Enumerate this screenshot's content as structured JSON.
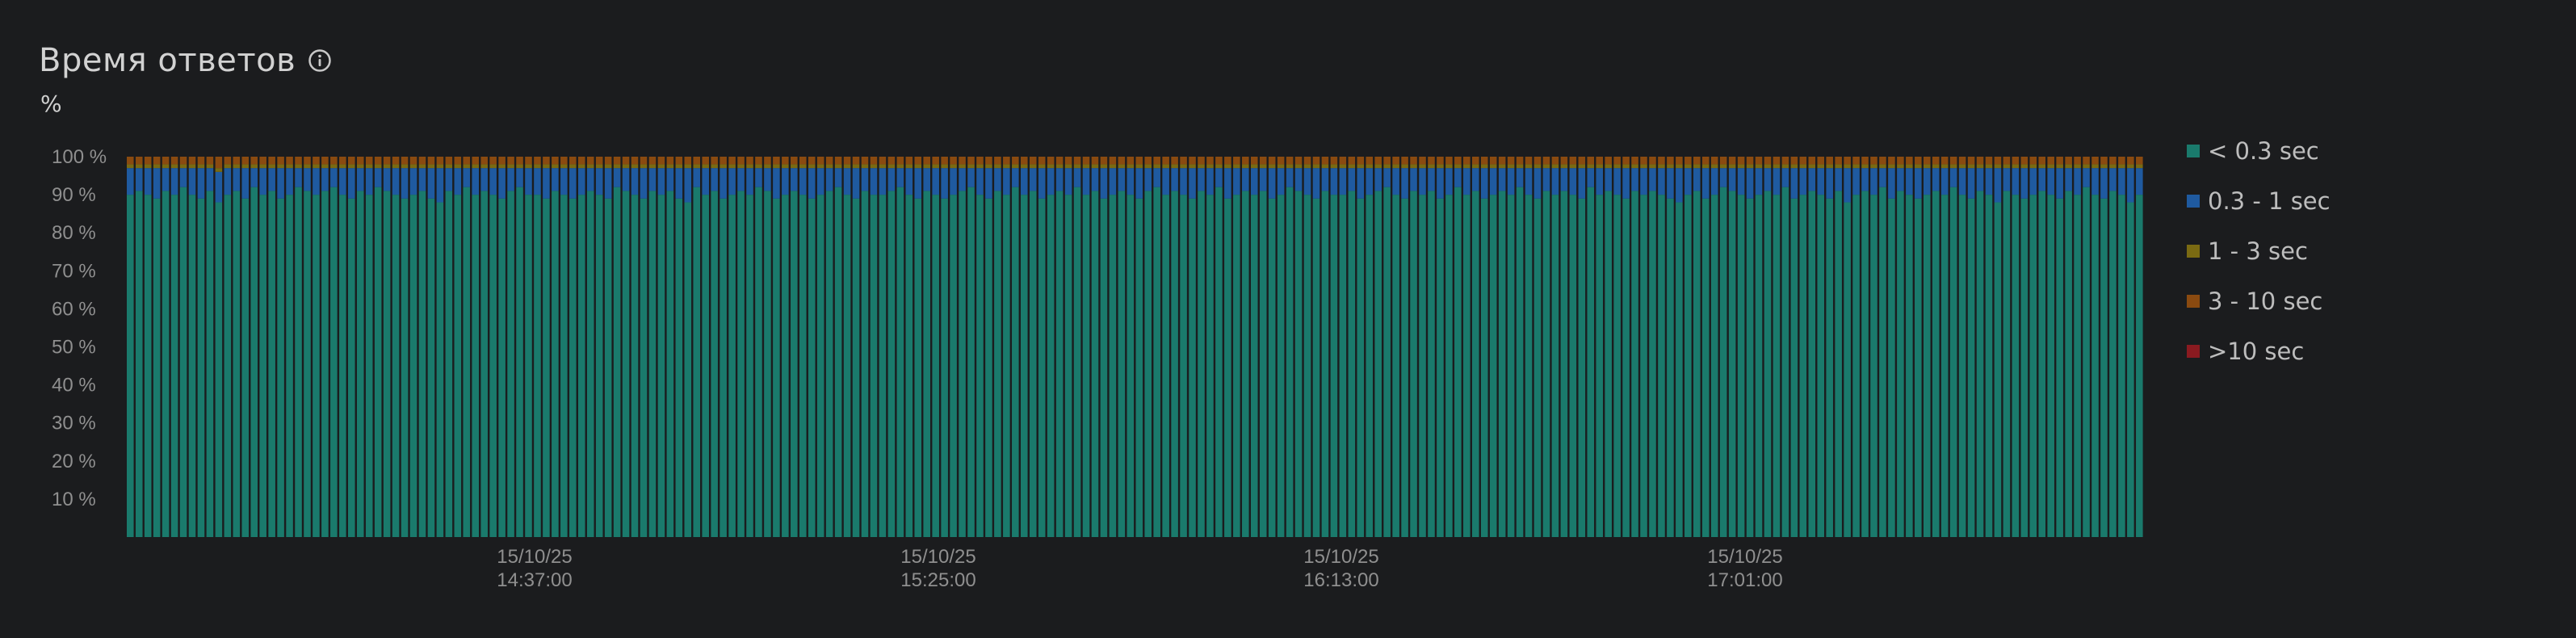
{
  "header": {
    "title": "Время ответов",
    "unit": "%"
  },
  "colors": {
    "background": "#1b1c1e",
    "under_0_3": "#1a7a6c",
    "0_3_to_1": "#1f5aa0",
    "1_to_3": "#7a6a12",
    "3_to_10": "#8a4a10",
    "over_10": "#8a1a20"
  },
  "icons": {
    "info": "info-circle-icon"
  },
  "chart_data": {
    "type": "bar",
    "stacked": true,
    "ylabel": "%",
    "ylim": [
      0,
      100
    ],
    "y_ticks": [
      "10 %",
      "20 %",
      "30 %",
      "40 %",
      "50 %",
      "60 %",
      "70 %",
      "80 %",
      "90 %",
      "100 %"
    ],
    "x_ticks": [
      {
        "date": "15/10/25",
        "time": "14:37:00"
      },
      {
        "date": "15/10/25",
        "time": "15:25:00"
      },
      {
        "date": "15/10/25",
        "time": "16:13:00"
      },
      {
        "date": "15/10/25",
        "time": "17:01:00"
      }
    ],
    "legend_position": "right",
    "grid": false,
    "series": [
      {
        "name": "< 0.3 sec",
        "color": "#1a7a6c",
        "values": [
          90,
          91,
          90,
          89,
          91,
          90,
          92,
          90,
          89,
          91,
          88,
          90,
          91,
          89,
          92,
          90,
          91,
          89,
          90,
          92,
          91,
          90,
          91,
          92,
          90,
          89,
          91,
          90,
          92,
          91,
          90,
          89,
          90,
          91,
          89,
          88,
          91,
          90,
          92,
          90,
          91,
          90,
          89,
          91,
          92,
          90,
          90,
          89,
          91,
          90,
          89,
          90,
          91,
          90,
          89,
          92,
          91,
          90,
          89,
          91,
          90,
          91,
          89,
          88,
          92,
          90,
          91,
          89,
          90,
          91,
          90,
          92,
          91,
          89,
          90,
          91,
          90,
          89,
          90,
          91,
          92,
          90,
          89,
          91,
          90,
          90,
          91,
          92,
          90,
          89,
          91,
          90,
          89,
          90,
          91,
          92,
          90,
          89,
          91,
          90,
          92,
          90,
          91,
          89,
          90,
          91,
          90,
          92,
          90,
          91,
          89,
          90,
          91,
          90,
          89,
          91,
          92,
          90,
          91,
          90,
          89,
          91,
          90,
          92,
          89,
          90,
          91,
          90,
          91,
          89,
          90,
          92,
          91,
          90,
          89,
          91,
          90,
          90,
          91,
          89,
          90,
          91,
          92,
          90,
          89,
          91,
          90,
          91,
          89,
          90,
          92,
          90,
          91,
          89,
          90,
          91,
          90,
          92,
          90,
          89,
          91,
          90,
          91,
          90,
          89,
          92,
          90,
          91,
          90,
          89,
          91,
          90,
          91,
          90,
          89,
          88,
          90,
          91,
          89,
          90,
          92,
          91,
          90,
          89,
          90,
          91,
          90,
          92,
          89,
          90,
          91,
          90,
          89,
          91,
          88,
          90,
          91,
          90,
          92,
          89,
          91,
          90,
          89,
          90,
          91,
          90,
          92,
          90,
          89,
          91,
          90,
          88,
          91,
          90,
          89,
          90,
          91,
          90,
          89,
          91,
          90,
          92,
          90,
          89,
          91,
          90,
          88,
          90
        ]
      },
      {
        "name": "0.3 - 1 sec",
        "color": "#1f5aa0",
        "values": [
          7,
          6,
          7,
          8,
          6,
          7,
          5,
          7,
          8,
          6,
          8,
          7,
          6,
          8,
          5,
          7,
          6,
          8,
          7,
          5,
          6,
          7,
          6,
          5,
          7,
          8,
          6,
          7,
          5,
          6,
          7,
          8,
          7,
          6,
          8,
          9,
          6,
          7,
          5,
          7,
          6,
          7,
          8,
          6,
          5,
          7,
          7,
          8,
          6,
          7,
          8,
          7,
          6,
          7,
          8,
          5,
          6,
          7,
          8,
          6,
          7,
          6,
          8,
          9,
          5,
          7,
          6,
          8,
          7,
          6,
          7,
          5,
          6,
          8,
          7,
          6,
          7,
          8,
          7,
          6,
          5,
          7,
          8,
          6,
          7,
          7,
          6,
          5,
          7,
          8,
          6,
          7,
          8,
          7,
          6,
          5,
          7,
          8,
          6,
          7,
          5,
          7,
          6,
          8,
          7,
          6,
          7,
          5,
          7,
          6,
          8,
          7,
          6,
          7,
          8,
          6,
          5,
          7,
          6,
          7,
          8,
          6,
          7,
          5,
          8,
          7,
          6,
          7,
          6,
          8,
          7,
          5,
          6,
          7,
          8,
          6,
          7,
          7,
          6,
          8,
          7,
          6,
          5,
          7,
          8,
          6,
          7,
          6,
          8,
          7,
          5,
          7,
          6,
          8,
          7,
          6,
          7,
          5,
          7,
          8,
          6,
          7,
          6,
          7,
          8,
          5,
          7,
          6,
          7,
          8,
          6,
          7,
          6,
          7,
          8,
          9,
          7,
          6,
          8,
          7,
          5,
          6,
          7,
          8,
          7,
          6,
          7,
          5,
          8,
          7,
          6,
          7,
          8,
          6,
          9,
          7,
          6,
          7,
          5,
          8,
          6,
          7,
          8,
          7,
          6,
          7,
          5,
          7,
          8,
          6,
          7,
          9,
          6,
          7,
          8,
          7,
          6,
          7,
          8,
          6,
          7,
          5,
          7,
          8,
          6,
          7,
          9,
          7
        ]
      },
      {
        "name": "1 - 3 sec",
        "color": "#7a6a12",
        "values": [
          1,
          1,
          1,
          1,
          1,
          1,
          1,
          1,
          1,
          1,
          1,
          1,
          1,
          1,
          1,
          1,
          1,
          1,
          1,
          1,
          1,
          1,
          1,
          1,
          1,
          1,
          1,
          1,
          1,
          1,
          1,
          1,
          1,
          1,
          1,
          1,
          1,
          1,
          1,
          1,
          1,
          1,
          1,
          1,
          1,
          1,
          1,
          1,
          1,
          1,
          1,
          1,
          1,
          1,
          1,
          1,
          1,
          1,
          1,
          1,
          1,
          1,
          1,
          1,
          1,
          1,
          1,
          1,
          1,
          1,
          1,
          1,
          1,
          1,
          1,
          1,
          1,
          1,
          1,
          1,
          1,
          1,
          1,
          1,
          1,
          1,
          1,
          1,
          1,
          1,
          1,
          1,
          1,
          1,
          1,
          1,
          1,
          1,
          1,
          1,
          1,
          1,
          1,
          1,
          1,
          1,
          1,
          1,
          1,
          1,
          1,
          1,
          1,
          1,
          1,
          1,
          1,
          1,
          1,
          1,
          1,
          1,
          1,
          1,
          1,
          1,
          1,
          1,
          1,
          1,
          1,
          1,
          1,
          1,
          1,
          1,
          1,
          1,
          1,
          1,
          1,
          1,
          1,
          1,
          1,
          1,
          1,
          1,
          1,
          1,
          1,
          1,
          1,
          1,
          1,
          1,
          1,
          1,
          1,
          1,
          1,
          1,
          1,
          1,
          1,
          1,
          1,
          1,
          1,
          1,
          1,
          1,
          1,
          1,
          1,
          1,
          1,
          1,
          1,
          1,
          1,
          1,
          1,
          1,
          1,
          1,
          1,
          1,
          1,
          1,
          1,
          1,
          1,
          1,
          1,
          1,
          1,
          1,
          1,
          1,
          1,
          1,
          1,
          1,
          1,
          1,
          1,
          1,
          1,
          1,
          1,
          1,
          1,
          1,
          1,
          1,
          1,
          1,
          1,
          1,
          1,
          1,
          1,
          1,
          1,
          1,
          1,
          1
        ]
      },
      {
        "name": "3 - 10 sec",
        "color": "#8a4a10",
        "values": [
          2,
          2,
          2,
          2,
          2,
          2,
          2,
          2,
          2,
          2,
          3,
          2,
          2,
          2,
          2,
          2,
          2,
          2,
          2,
          2,
          2,
          2,
          2,
          2,
          2,
          2,
          2,
          2,
          2,
          2,
          2,
          2,
          2,
          2,
          2,
          2,
          2,
          2,
          2,
          2,
          2,
          2,
          2,
          2,
          2,
          2,
          2,
          2,
          2,
          2,
          2,
          2,
          2,
          2,
          2,
          2,
          2,
          2,
          2,
          2,
          2,
          2,
          2,
          2,
          2,
          2,
          2,
          2,
          2,
          2,
          2,
          2,
          2,
          2,
          2,
          2,
          2,
          2,
          2,
          2,
          2,
          2,
          2,
          2,
          2,
          2,
          2,
          2,
          2,
          2,
          2,
          2,
          2,
          2,
          2,
          2,
          2,
          2,
          2,
          2,
          2,
          2,
          2,
          2,
          2,
          2,
          2,
          2,
          2,
          2,
          2,
          2,
          2,
          2,
          2,
          2,
          2,
          2,
          2,
          2,
          2,
          2,
          2,
          2,
          2,
          2,
          2,
          2,
          2,
          2,
          2,
          2,
          2,
          2,
          2,
          2,
          2,
          2,
          2,
          2,
          2,
          2,
          2,
          2,
          2,
          2,
          2,
          2,
          2,
          2,
          2,
          2,
          2,
          2,
          2,
          2,
          2,
          2,
          2,
          2,
          2,
          2,
          2,
          2,
          2,
          2,
          2,
          2,
          2,
          2,
          2,
          2,
          2,
          2,
          2,
          2,
          2,
          2,
          2,
          2,
          2,
          2,
          2,
          2,
          2,
          2,
          2,
          2,
          2,
          2,
          2,
          2,
          2,
          2,
          2,
          2,
          2,
          2,
          2,
          2,
          2,
          2,
          2,
          2,
          2,
          2,
          2,
          2,
          2,
          2,
          2,
          2,
          2,
          2,
          2,
          2,
          2,
          2,
          2,
          2,
          2,
          2,
          2,
          2,
          2,
          2,
          2,
          2
        ]
      },
      {
        "name": ">10 sec",
        "color": "#8a1a20",
        "values": [
          0,
          0,
          0,
          0,
          0,
          0,
          0,
          0,
          0,
          0,
          0,
          0,
          0,
          0,
          0,
          0,
          0,
          0,
          0,
          0,
          0,
          0,
          0,
          0,
          0,
          0,
          0,
          0,
          0,
          0,
          0,
          0,
          0,
          0,
          0,
          0,
          0,
          0,
          0,
          0,
          0,
          0,
          0,
          0,
          0,
          0,
          0,
          0,
          0,
          0,
          0,
          0,
          0,
          0,
          0,
          0,
          0,
          0,
          0,
          0,
          0,
          0,
          0,
          0,
          0,
          0,
          0,
          0,
          0,
          0,
          0,
          0,
          0,
          0,
          0,
          0,
          0,
          0,
          0,
          0,
          0,
          0,
          0,
          0,
          0,
          0,
          0,
          0,
          0,
          0,
          0,
          0,
          0,
          0,
          0,
          0,
          0,
          0,
          0,
          0,
          0,
          0,
          0,
          0,
          0,
          0,
          0,
          0,
          0,
          0,
          0,
          0,
          0,
          0,
          0,
          0,
          0,
          0,
          0,
          0,
          0,
          0,
          0,
          0,
          0,
          0,
          0,
          0,
          0,
          0,
          0,
          0,
          0,
          0,
          0,
          0,
          0,
          0,
          0,
          0,
          0,
          0,
          0,
          0,
          0,
          0,
          0,
          0,
          0,
          0,
          0,
          0,
          0,
          0,
          0,
          0,
          0,
          0,
          0,
          0,
          0,
          0,
          0,
          0,
          0,
          0,
          0,
          0,
          0,
          0,
          0,
          0,
          0,
          0,
          0,
          0,
          0,
          0,
          0,
          0,
          0,
          0,
          0,
          0,
          0,
          0,
          0,
          0,
          0,
          0,
          0,
          0,
          0,
          0,
          0,
          0,
          0,
          0,
          0,
          0,
          0,
          0,
          0,
          0,
          0,
          0,
          0,
          0,
          0,
          0,
          0,
          0,
          0,
          0,
          0,
          0,
          0,
          0,
          0,
          0,
          0,
          0,
          0,
          0,
          0,
          0,
          0,
          0
        ]
      }
    ]
  }
}
